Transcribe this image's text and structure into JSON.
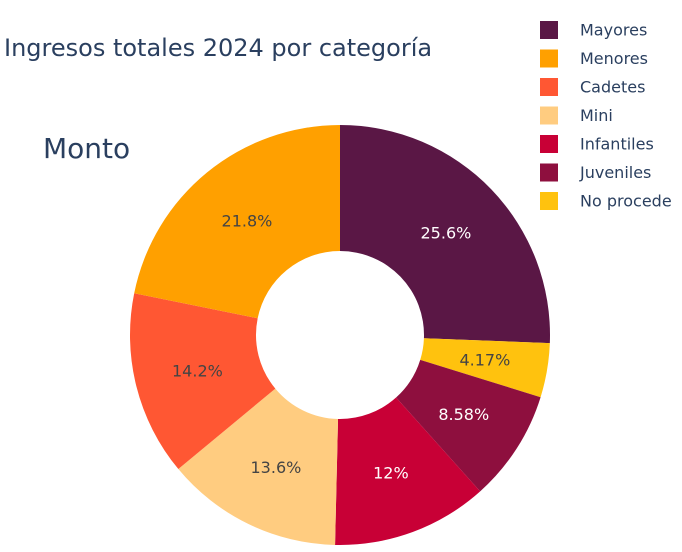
{
  "chart_data": {
    "type": "pie",
    "hole": 0.4,
    "title": "Ingresos totales 2024 por categoría",
    "subtitle": "Monto",
    "legend_placement": "top-right",
    "slices": [
      {
        "name": "Mayores",
        "value": 25.6,
        "label": "25.6%",
        "color": "#5a1745",
        "label_color": "#ffffff"
      },
      {
        "name": "No procede",
        "value": 4.17,
        "label": "4.17%",
        "color": "#ffc20e",
        "label_color": "#444444"
      },
      {
        "name": "Juveniles",
        "value": 8.58,
        "label": "8.58%",
        "color": "#8e0f3e",
        "label_color": "#ffffff"
      },
      {
        "name": "Infantiles",
        "value": 12,
        "label": "12%",
        "color": "#c80036",
        "label_color": "#ffffff"
      },
      {
        "name": "Mini",
        "value": 13.6,
        "label": "13.6%",
        "color": "#ffcc80",
        "label_color": "#444444"
      },
      {
        "name": "Cadetes",
        "value": 14.2,
        "label": "14.2%",
        "color": "#ff5733",
        "label_color": "#444444"
      },
      {
        "name": "Menores",
        "value": 21.8,
        "label": "21.8%",
        "color": "#ffa000",
        "label_color": "#444444"
      }
    ],
    "legend": [
      "Mayores",
      "Menores",
      "Cadetes",
      "Mini",
      "Infantiles",
      "Juveniles",
      "No procede"
    ]
  }
}
